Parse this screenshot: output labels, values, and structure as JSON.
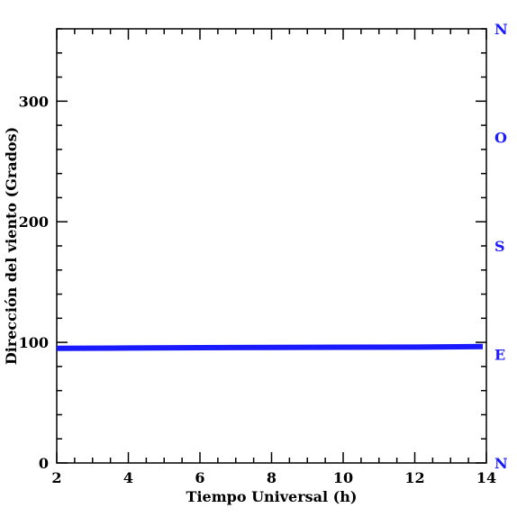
{
  "chart_data": {
    "type": "line",
    "title": "",
    "xlabel": "Tiempo Universal (h)",
    "ylabel": "Dirección del viento (Grados)",
    "xlim": [
      2,
      14
    ],
    "ylim": [
      0,
      360
    ],
    "x_ticks": [
      2,
      4,
      6,
      8,
      10,
      12,
      14
    ],
    "x_tick_labels": [
      "2",
      "4",
      "6",
      "8",
      "10",
      "12",
      "14"
    ],
    "x_minor_step": 0.5,
    "y_ticks": [
      0,
      100,
      200,
      300
    ],
    "y_tick_labels": [
      "0",
      "100",
      "200",
      "300"
    ],
    "y_minor_step": 20,
    "grid": false,
    "legend": "none",
    "right_axis": {
      "labels": [
        "N",
        "O",
        "S",
        "E",
        "N"
      ],
      "values": [
        360,
        270,
        180,
        90,
        0
      ],
      "color": "#1a1aff"
    },
    "series": [
      {
        "color": "#1a1aff",
        "x": [
          2,
          4,
          6,
          8,
          10,
          12,
          13.9
        ],
        "y": [
          95,
          95.3,
          95.6,
          95.8,
          96,
          96.1,
          96.5
        ]
      }
    ]
  }
}
